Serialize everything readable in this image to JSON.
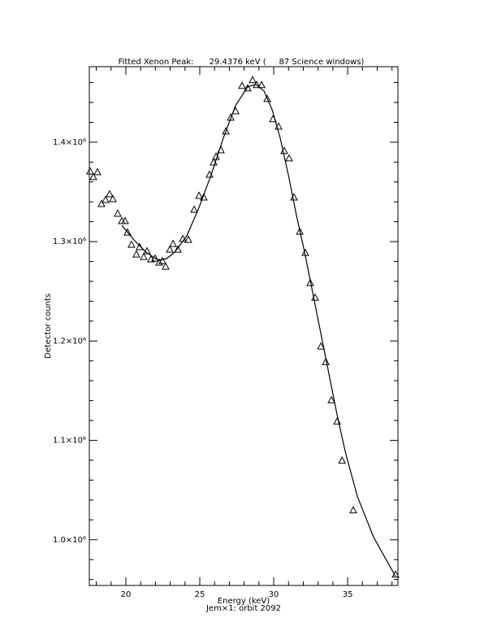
{
  "chart_data": {
    "type": "scatter",
    "title": "Fitted Xenon Peak:      29.4376 keV (     87 Science windows)",
    "x_label": "Energy (keV)",
    "subtitle": "Jem×1: orbit 2092",
    "y_label": "Detector counts",
    "xlim": [
      17.53,
      38.4
    ],
    "ylim": [
      954000,
      1476000
    ],
    "xticks": [
      20,
      25,
      30,
      35
    ],
    "yticks": [
      {
        "value": 1000000,
        "label": "1.0×10⁶"
      },
      {
        "value": 1100000,
        "label": "1.1×10⁶"
      },
      {
        "value": 1200000,
        "label": "1.2×10⁶"
      },
      {
        "value": 1300000,
        "label": "1.3×10⁶"
      },
      {
        "value": 1400000,
        "label": "1.4×10⁶"
      }
    ],
    "xminor_ticks": [
      18,
      19,
      21,
      22,
      23,
      24,
      26,
      27,
      28,
      29,
      31,
      32,
      33,
      34,
      36,
      37,
      38
    ],
    "yminor_ticks": [
      960000,
      980000,
      1020000,
      1040000,
      1060000,
      1080000,
      1120000,
      1140000,
      1160000,
      1180000,
      1220000,
      1240000,
      1260000,
      1280000,
      1320000,
      1340000,
      1360000,
      1380000,
      1420000,
      1440000,
      1460000
    ],
    "series": [
      {
        "marker": "triangle",
        "color": "#000000",
        "x": [
          17.58,
          17.8,
          18.08,
          18.35,
          18.63,
          18.9,
          19.12,
          19.45,
          19.73,
          19.95,
          20.11,
          20.38,
          20.71,
          20.93,
          21.21,
          21.43,
          21.7,
          21.98,
          22.25,
          22.47,
          22.69,
          22.97,
          23.19,
          23.52,
          23.85,
          24.23,
          24.62,
          24.95,
          25.27,
          25.66,
          25.93,
          26.1,
          26.43,
          26.76,
          27.09,
          27.42,
          27.86,
          28.24,
          28.57,
          28.85,
          29.18,
          29.56,
          29.95,
          30.33,
          30.71,
          31.04,
          31.37,
          31.76,
          32.14,
          32.47,
          32.8,
          33.19,
          33.52,
          33.9,
          34.29,
          34.62,
          35.38,
          38.24
        ],
        "values": [
          1370500,
          1364800,
          1369700,
          1337700,
          1341800,
          1347500,
          1342600,
          1327900,
          1320500,
          1320500,
          1309000,
          1296700,
          1286900,
          1294300,
          1284400,
          1290200,
          1282000,
          1282800,
          1278700,
          1280300,
          1274600,
          1291800,
          1297500,
          1291800,
          1302500,
          1301600,
          1332000,
          1345900,
          1344300,
          1367200,
          1379500,
          1385200,
          1391800,
          1410700,
          1424600,
          1431100,
          1456600,
          1454100,
          1462300,
          1457400,
          1457400,
          1443400,
          1423000,
          1415600,
          1391000,
          1383600,
          1344300,
          1309800,
          1288500,
          1258200,
          1243400,
          1194300,
          1178700,
          1140200,
          1118800,
          1079500,
          1029500,
          964800
        ]
      },
      {
        "marker": "line",
        "color": "#000000",
        "x": [
          19.73,
          20.55,
          21.37,
          22.2,
          22.75,
          23.3,
          24.12,
          24.95,
          25.77,
          26.59,
          27.42,
          28.24,
          28.79,
          29.34,
          29.89,
          30.44,
          30.99,
          31.54,
          32.09,
          32.64,
          33.19,
          33.74,
          34.29,
          34.84,
          35.66,
          36.76,
          38.24
        ],
        "values": [
          1316400,
          1301600,
          1289300,
          1281100,
          1282800,
          1289300,
          1305700,
          1334400,
          1367200,
          1404100,
          1436900,
          1455700,
          1458200,
          1451600,
          1432800,
          1404100,
          1367200,
          1326200,
          1289300,
          1248400,
          1207400,
          1166400,
          1125400,
          1088500,
          1043400,
          1002400,
          963100
        ]
      }
    ]
  }
}
